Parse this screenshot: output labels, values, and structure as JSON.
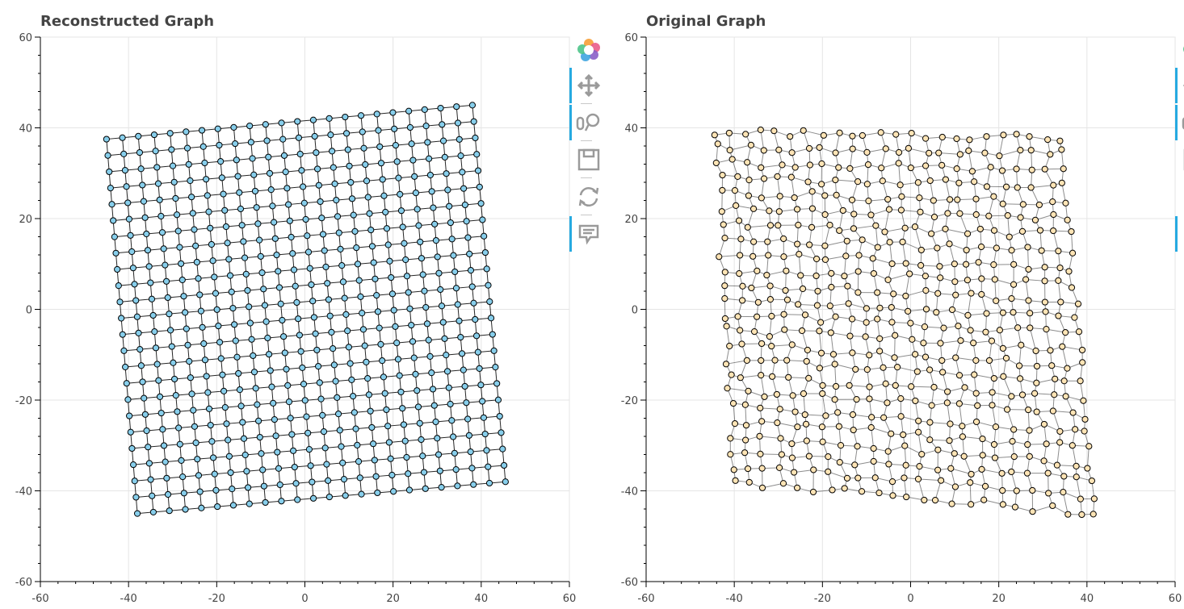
{
  "panels": [
    {
      "id": "left",
      "title": "Reconstructed Graph"
    },
    {
      "id": "right",
      "title": "Original Graph"
    }
  ],
  "toolbar": {
    "tools": [
      {
        "name": "bokeh-logo-icon",
        "active": false
      },
      {
        "name": "pan-icon",
        "active": true
      },
      {
        "name": "wheel-zoom-icon",
        "active": true
      },
      {
        "name": "save-icon",
        "active": false
      },
      {
        "name": "reset-icon",
        "active": false
      },
      {
        "name": "hover-icon",
        "active": true
      }
    ]
  },
  "colors": {
    "reconstructed_node_fill": "#87ceeb",
    "original_node_fill": "#ffe4b5",
    "node_stroke": "#000000",
    "edge_color": "#000000",
    "grid_color": "#e5e5e5",
    "toolbar_active": "#26aae1"
  },
  "chart_data": [
    {
      "type": "scatter",
      "title": "Reconstructed Graph",
      "xlim": [
        -60,
        60
      ],
      "ylim": [
        -60,
        60
      ],
      "xticks": [
        "-60",
        "-40",
        "-20",
        "0",
        "20",
        "40",
        "60"
      ],
      "yticks": [
        "-60",
        "-40",
        "-20",
        "0",
        "20",
        "40",
        "60"
      ],
      "grid": true,
      "layout": "grid-network",
      "rows": 24,
      "cols": 24,
      "corners": {
        "top_left": [
          -45,
          37.5
        ],
        "top_right": [
          38,
          45
        ],
        "bottom_left": [
          -38,
          -45
        ],
        "bottom_right": [
          45.5,
          -38
        ]
      },
      "jitter": 0,
      "seed": 7
    },
    {
      "type": "scatter",
      "title": "Original Graph",
      "xlim": [
        -60,
        60
      ],
      "ylim": [
        -60,
        60
      ],
      "xticks": [
        "-60",
        "-40",
        "-20",
        "0",
        "20",
        "40",
        "60"
      ],
      "yticks": [
        "-60",
        "-40",
        "-20",
        "0",
        "20",
        "40",
        "60"
      ],
      "grid": true,
      "layout": "grid-network",
      "rows": 24,
      "cols": 24,
      "corners": {
        "top_left": [
          -44,
          39
        ],
        "top_right": [
          34,
          38
        ],
        "bottom_left": [
          -40,
          -38
        ],
        "bottom_right": [
          42,
          -45
        ]
      },
      "jitter": 0.9,
      "seed": 21
    }
  ]
}
